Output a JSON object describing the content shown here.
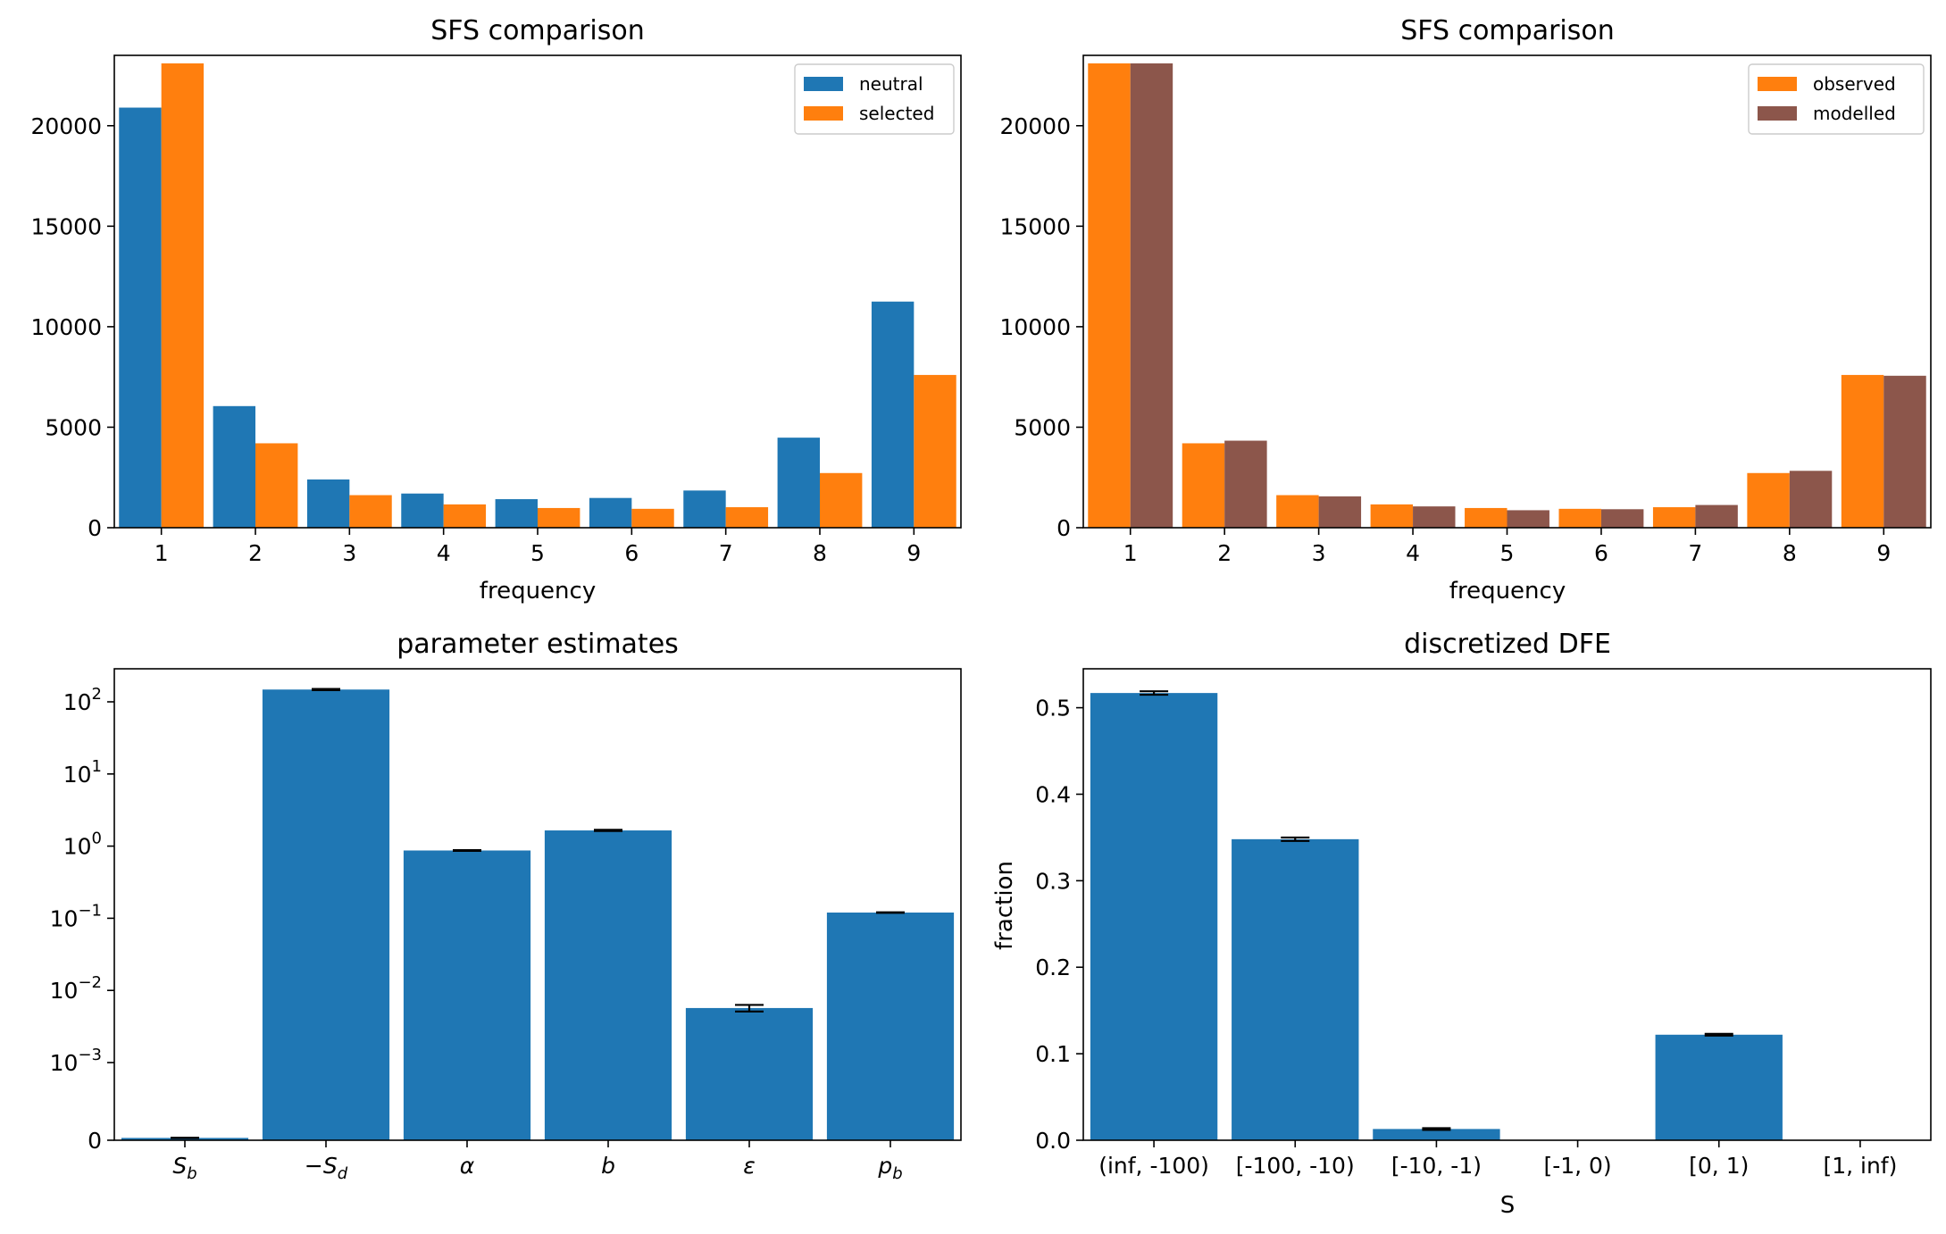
{
  "chart_data": [
    {
      "type": "bar",
      "title": "SFS comparison",
      "xlabel": "frequency",
      "ylabel": "",
      "categories": [
        "1",
        "2",
        "3",
        "4",
        "5",
        "6",
        "7",
        "8",
        "9"
      ],
      "ylim": [
        0,
        23500
      ],
      "yticks": [
        0,
        5000,
        10000,
        15000,
        20000
      ],
      "legend": "top-right",
      "series": [
        {
          "name": "neutral",
          "color": "#1f77b4",
          "values": [
            20900,
            6050,
            2400,
            1700,
            1420,
            1480,
            1850,
            4480,
            11250
          ]
        },
        {
          "name": "selected",
          "color": "#ff7f0e",
          "values": [
            23100,
            4200,
            1620,
            1160,
            980,
            940,
            1020,
            2720,
            7600
          ]
        }
      ]
    },
    {
      "type": "bar",
      "title": "SFS comparison",
      "xlabel": "frequency",
      "ylabel": "",
      "categories": [
        "1",
        "2",
        "3",
        "4",
        "5",
        "6",
        "7",
        "8",
        "9"
      ],
      "ylim": [
        0,
        23500
      ],
      "yticks": [
        0,
        5000,
        10000,
        15000,
        20000
      ],
      "legend": "top-right",
      "series": [
        {
          "name": "observed",
          "color": "#ff7f0e",
          "values": [
            23100,
            4200,
            1620,
            1160,
            980,
            940,
            1020,
            2720,
            7600
          ]
        },
        {
          "name": "modelled",
          "color": "#8c564b",
          "values": [
            23100,
            4330,
            1560,
            1060,
            870,
            920,
            1130,
            2830,
            7560
          ]
        }
      ]
    },
    {
      "type": "bar",
      "title": "parameter estimates",
      "xlabel": "",
      "ylabel": "",
      "yscale": "symlog",
      "categories": [
        "S_b",
        "−S_d",
        "α",
        "b",
        "ε",
        "p_b"
      ],
      "yticks": [
        "0",
        "10⁻³",
        "10⁻²",
        "10⁻¹",
        "10⁰",
        "10¹",
        "10²"
      ],
      "color": "#1f77b4",
      "values": [
        3e-05,
        148,
        0.87,
        1.65,
        0.0057,
        0.12
      ],
      "errors": [
        2e-06,
        3,
        0.01,
        0.03,
        0.0006,
        0.001
      ]
    },
    {
      "type": "bar",
      "title": "discretized DFE",
      "xlabel": "S",
      "ylabel": "fraction",
      "categories": [
        "(inf, -100)",
        "[-100, -10)",
        "[-10, -1)",
        "[-1, 0)",
        "[0, 1)",
        "[1, inf)"
      ],
      "ylim": [
        0,
        0.545
      ],
      "yticks": [
        "0.0",
        "0.1",
        "0.2",
        "0.3",
        "0.4",
        "0.5"
      ],
      "color": "#1f77b4",
      "values": [
        0.517,
        0.348,
        0.013,
        0.0,
        0.122,
        0.0
      ],
      "errors": [
        0.002,
        0.002,
        0.001,
        0.0,
        0.001,
        0.0
      ]
    }
  ]
}
